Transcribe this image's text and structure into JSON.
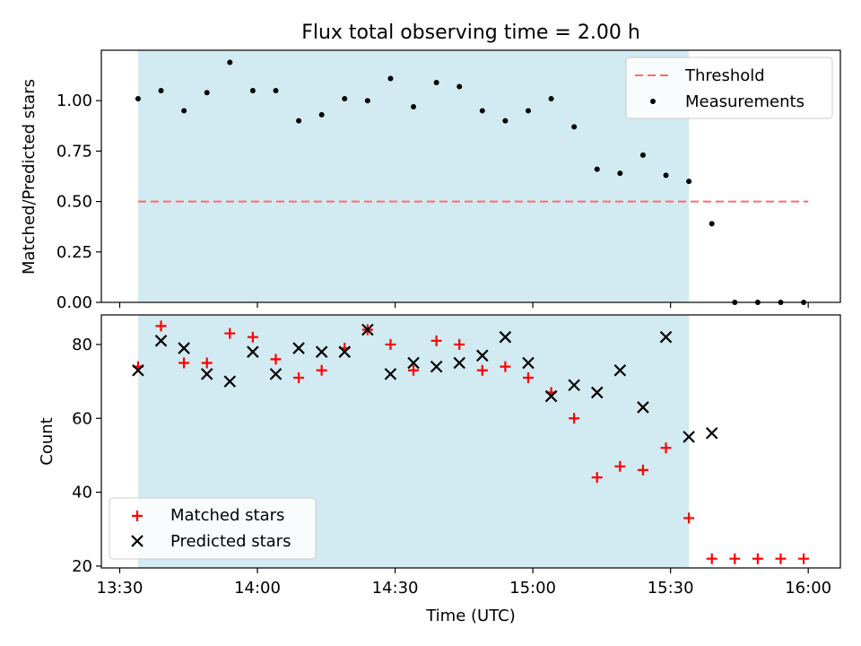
{
  "title": "Flux total observing time = 2.00 h",
  "colors": {
    "shade": "#add8e6",
    "threshold": "#ff6b6b",
    "measurements": "#000000",
    "matched": "#ff0000",
    "predicted": "#000000"
  },
  "x_tick_labels": [
    "13:30",
    "14:00",
    "14:30",
    "15:00",
    "15:30",
    "16:00"
  ],
  "xlabel": "Time (UTC)",
  "chart_data": [
    {
      "type": "scatter",
      "panel": "top",
      "ylabel": "Matched/Predicted stars",
      "xlim": [
        "13:26",
        "16:07"
      ],
      "ylim": [
        0,
        1.25
      ],
      "y_ticks": [
        "0.00",
        "0.25",
        "0.50",
        "0.75",
        "1.00"
      ],
      "y_tick_values": [
        0,
        0.25,
        0.5,
        0.75,
        1.0
      ],
      "shaded_region": [
        "13:34",
        "15:34"
      ],
      "legend": {
        "position": "upper right",
        "entries": [
          "Threshold",
          "Measurements"
        ]
      },
      "threshold": {
        "name": "Threshold",
        "y": 0.5,
        "x": [
          "13:34",
          "16:00"
        ],
        "style": "dashed"
      },
      "series": [
        {
          "name": "Measurements",
          "marker": "dot",
          "x": [
            "13:34",
            "13:39",
            "13:44",
            "13:49",
            "13:54",
            "13:59",
            "14:04",
            "14:09",
            "14:14",
            "14:19",
            "14:24",
            "14:29",
            "14:34",
            "14:39",
            "14:44",
            "14:49",
            "14:54",
            "14:59",
            "15:04",
            "15:09",
            "15:14",
            "15:19",
            "15:24",
            "15:29",
            "15:34",
            "15:39",
            "15:44",
            "15:49",
            "15:54",
            "15:59"
          ],
          "y": [
            1.01,
            1.05,
            0.95,
            1.04,
            1.19,
            1.05,
            1.05,
            0.9,
            0.93,
            1.01,
            1.0,
            1.11,
            0.97,
            1.09,
            1.07,
            0.95,
            0.9,
            0.95,
            1.01,
            0.87,
            0.66,
            0.64,
            0.73,
            0.63,
            0.6,
            0.39,
            0,
            0,
            0,
            0
          ]
        }
      ]
    },
    {
      "type": "scatter",
      "panel": "bottom",
      "ylabel": "Count",
      "xlim": [
        "13:26",
        "16:07"
      ],
      "ylim": [
        19.5,
        88
      ],
      "y_ticks": [
        "20",
        "40",
        "60",
        "80"
      ],
      "y_tick_values": [
        20,
        40,
        60,
        80
      ],
      "shaded_region": [
        "13:34",
        "15:34"
      ],
      "legend": {
        "position": "lower left",
        "entries": [
          "Matched stars",
          "Predicted stars"
        ]
      },
      "series": [
        {
          "name": "Matched stars",
          "marker": "plus",
          "x": [
            "13:34",
            "13:39",
            "13:44",
            "13:49",
            "13:54",
            "13:59",
            "14:04",
            "14:09",
            "14:14",
            "14:19",
            "14:24",
            "14:29",
            "14:34",
            "14:39",
            "14:44",
            "14:49",
            "14:54",
            "14:59",
            "15:04",
            "15:09",
            "15:14",
            "15:19",
            "15:24",
            "15:29",
            "15:34",
            "15:39",
            "15:44",
            "15:49",
            "15:54",
            "15:59"
          ],
          "y": [
            74,
            85,
            75,
            75,
            83,
            82,
            76,
            71,
            73,
            79,
            84,
            80,
            73,
            81,
            80,
            73,
            74,
            71,
            67,
            60,
            44,
            47,
            46,
            52,
            33,
            22,
            22,
            22,
            22,
            22
          ]
        },
        {
          "name": "Predicted stars",
          "marker": "x",
          "x": [
            "13:34",
            "13:39",
            "13:44",
            "13:49",
            "13:54",
            "13:59",
            "14:04",
            "14:09",
            "14:14",
            "14:19",
            "14:24",
            "14:29",
            "14:34",
            "14:39",
            "14:44",
            "14:49",
            "14:54",
            "14:59",
            "15:04",
            "15:09",
            "15:14",
            "15:19",
            "15:24",
            "15:29",
            "15:34",
            "15:39"
          ],
          "y": [
            73,
            81,
            79,
            72,
            70,
            78,
            72,
            79,
            78,
            78,
            84,
            72,
            75,
            74,
            75,
            77,
            82,
            75,
            66,
            69,
            67,
            73,
            63,
            82,
            55,
            56
          ]
        }
      ]
    }
  ]
}
